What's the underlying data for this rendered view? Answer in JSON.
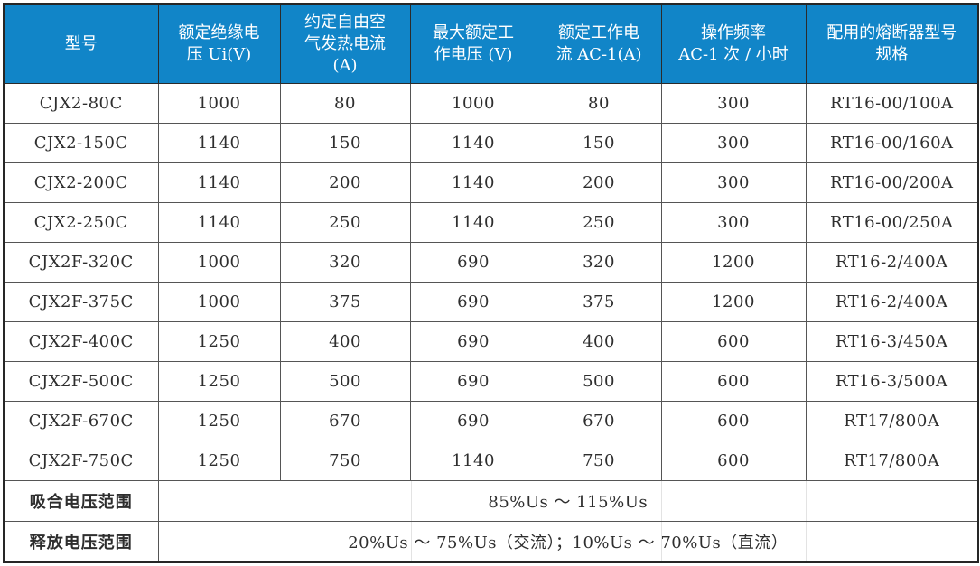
{
  "table": {
    "header": [
      "型号",
      "额定绝缘电\n压 Ui(V)",
      "约定自由空\n气发热电流\n(A)",
      "最大额定工\n作电压 (V)",
      "额定工作电\n流 AC-1(A)",
      "操作频率\nAC-1 次 / 小时",
      "配用的熔断器型号\n规格"
    ],
    "rows": [
      [
        "CJX2-80C",
        "1000",
        "80",
        "1000",
        "80",
        "300",
        "RT16-00/100A"
      ],
      [
        "CJX2-150C",
        "1140",
        "150",
        "1140",
        "150",
        "300",
        "RT16-00/160A"
      ],
      [
        "CJX2-200C",
        "1140",
        "200",
        "1140",
        "200",
        "300",
        "RT16-00/200A"
      ],
      [
        "CJX2-250C",
        "1140",
        "250",
        "1140",
        "250",
        "300",
        "RT16-00/250A"
      ],
      [
        "CJX2F-320C",
        "1000",
        "320",
        "690",
        "320",
        "1200",
        "RT16-2/400A"
      ],
      [
        "CJX2F-375C",
        "1000",
        "375",
        "690",
        "375",
        "1200",
        "RT16-2/400A"
      ],
      [
        "CJX2F-400C",
        "1250",
        "400",
        "690",
        "400",
        "600",
        "RT16-3/450A"
      ],
      [
        "CJX2F-500C",
        "1250",
        "500",
        "690",
        "500",
        "600",
        "RT16-3/500A"
      ],
      [
        "CJX2F-670C",
        "1250",
        "670",
        "690",
        "670",
        "600",
        "RT17/800A"
      ],
      [
        "CJX2F-750C",
        "1250",
        "750",
        "1140",
        "750",
        "600",
        "RT17/800A"
      ]
    ],
    "footer_rows": [
      {
        "label": "吸合电压范围",
        "value": "85%Us ～ 115%Us"
      },
      {
        "label": "释放电压范围",
        "value": "20%Us ～ 75%Us（交流）；10%Us ～ 70%Us（直流）"
      }
    ],
    "colors": {
      "header_bg": "#1185c8",
      "header_text": "#ffffff",
      "body_text": "#2e2e2e",
      "grid_line": "#555555",
      "outer_border": "#262626",
      "faint_separator": "#e3e3e3"
    }
  }
}
